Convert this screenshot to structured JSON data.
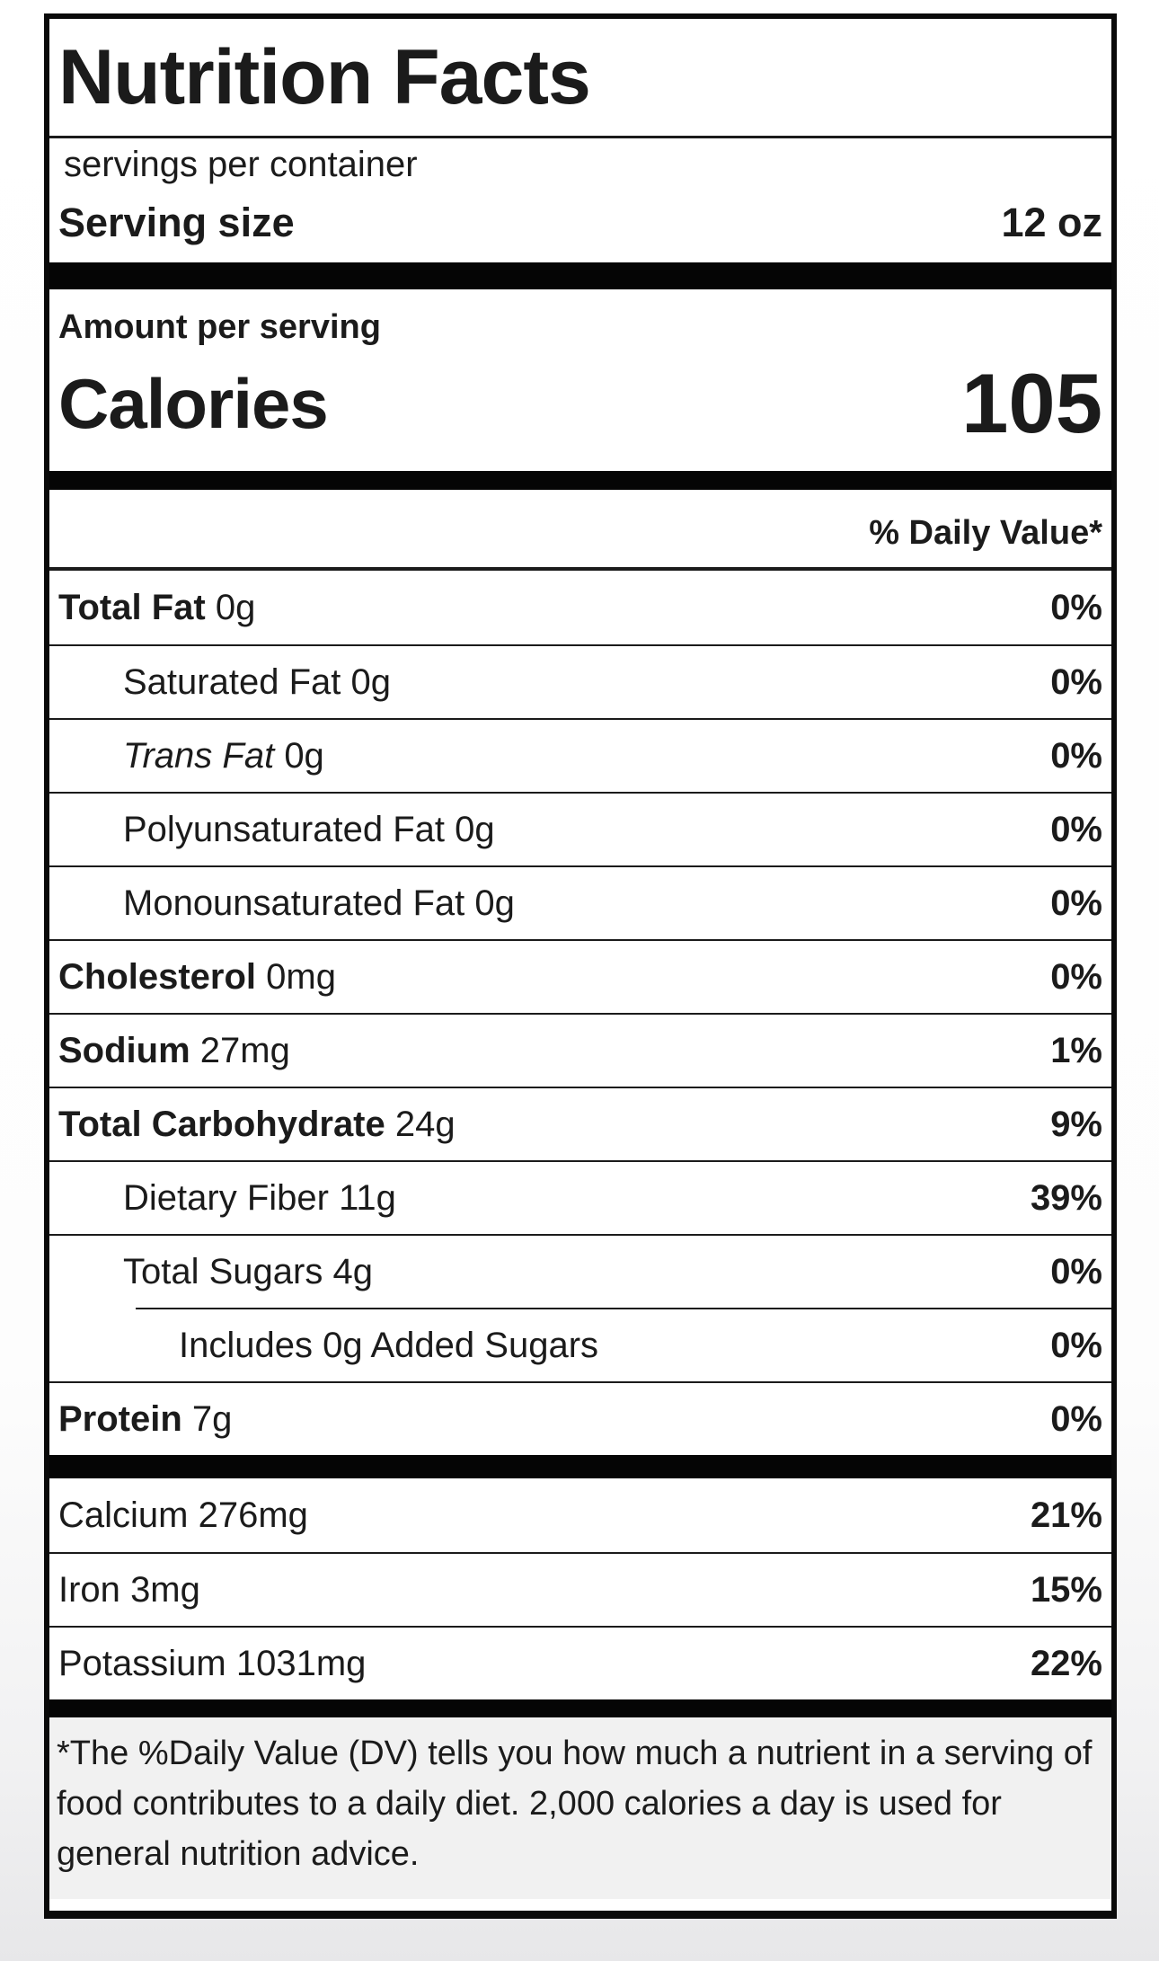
{
  "label": {
    "title": "Nutrition Facts",
    "servings_per_container": "servings per container",
    "serving_size": {
      "label": "Serving size",
      "value": "12 oz"
    },
    "amount_per_serving": "Amount per serving",
    "calories": {
      "label": "Calories",
      "value": "105"
    },
    "daily_value_header": "% Daily Value*",
    "nutrients": [
      {
        "name": "Total Fat",
        "amount": "0g",
        "dv": "0%",
        "bold": true,
        "indent": 0,
        "italic": false,
        "indent_rule": false
      },
      {
        "name": "Saturated Fat",
        "amount": "0g",
        "dv": "0%",
        "bold": false,
        "indent": 1,
        "italic": false,
        "indent_rule": false
      },
      {
        "name": "Trans Fat",
        "amount": "0g",
        "dv": "0%",
        "bold": false,
        "indent": 1,
        "italic": true,
        "indent_rule": false
      },
      {
        "name": "Polyunsaturated Fat",
        "amount": "0g",
        "dv": "0%",
        "bold": false,
        "indent": 1,
        "italic": false,
        "indent_rule": false
      },
      {
        "name": "Monounsaturated Fat",
        "amount": "0g",
        "dv": "0%",
        "bold": false,
        "indent": 1,
        "italic": false,
        "indent_rule": false
      },
      {
        "name": "Cholesterol",
        "amount": "0mg",
        "dv": "0%",
        "bold": true,
        "indent": 0,
        "italic": false,
        "indent_rule": false
      },
      {
        "name": "Sodium",
        "amount": "27mg",
        "dv": "1%",
        "bold": true,
        "indent": 0,
        "italic": false,
        "indent_rule": false
      },
      {
        "name": "Total Carbohydrate",
        "amount": "24g",
        "dv": "9%",
        "bold": true,
        "indent": 0,
        "italic": false,
        "indent_rule": false
      },
      {
        "name": "Dietary Fiber",
        "amount": "11g",
        "dv": "39%",
        "bold": false,
        "indent": 1,
        "italic": false,
        "indent_rule": false
      },
      {
        "name": "Total Sugars",
        "amount": "4g",
        "dv": "0%",
        "bold": false,
        "indent": 1,
        "italic": false,
        "indent_rule": false
      },
      {
        "name": "Includes 0g Added Sugars",
        "amount": "",
        "dv": "0%",
        "bold": false,
        "indent": 2,
        "italic": false,
        "indent_rule": true
      },
      {
        "name": "Protein",
        "amount": "7g",
        "dv": "0%",
        "bold": true,
        "indent": 0,
        "italic": false,
        "indent_rule": false
      }
    ],
    "minerals": [
      {
        "name": "Calcium",
        "amount": "276mg",
        "dv": "21%"
      },
      {
        "name": "Iron",
        "amount": "3mg",
        "dv": "15%"
      },
      {
        "name": "Potassium",
        "amount": "1031mg",
        "dv": "22%"
      }
    ],
    "footnote": "*The %Daily Value (DV) tells you how much a nutrient in a serving of food contributes to a daily diet. 2,000 calories a day is used for general nutrition advice.",
    "colors": {
      "text": "#1b1b1b",
      "bar": "#050505",
      "footnote_background": "#f1f1f1",
      "label_background": "#ffffff"
    }
  }
}
